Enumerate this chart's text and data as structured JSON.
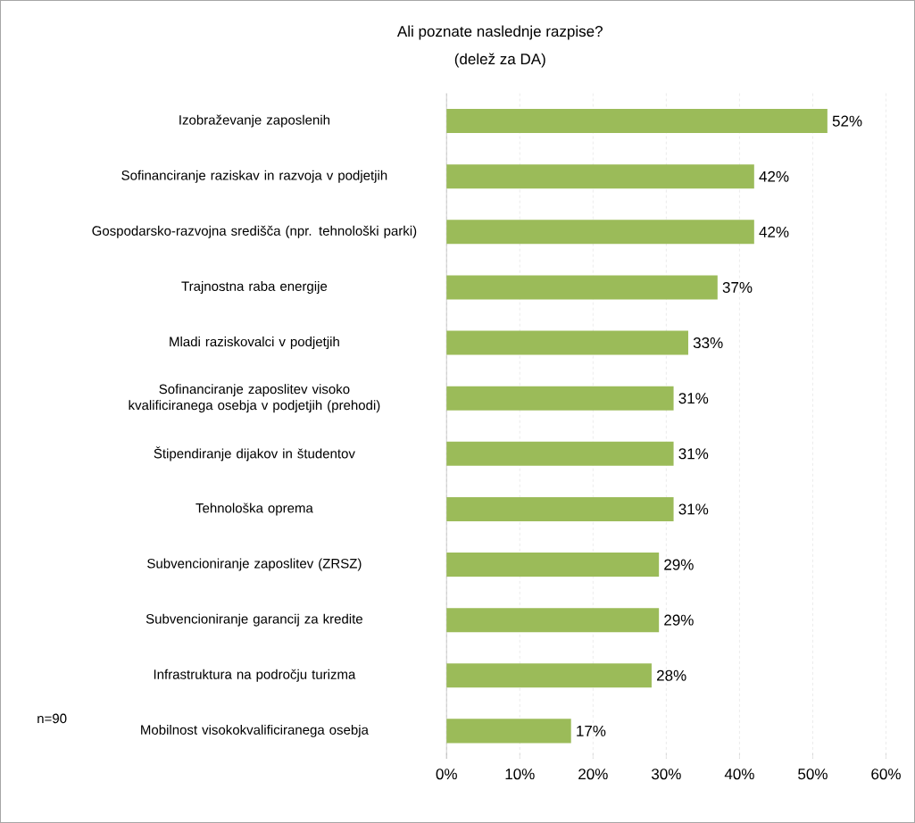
{
  "chart_data": {
    "type": "bar",
    "orientation": "horizontal",
    "title": "Ali poznate naslednje razpise?",
    "subtitle": "(delež za DA)",
    "categories": [
      "Izobraževanje zaposlenih",
      "Sofinanciranje raziskav in razvoja v podjetjih",
      "Gospodarsko-razvojna središča (npr. tehnološki parki)",
      "Trajnostna raba energije",
      "Mladi raziskovalci v podjetjih",
      "Sofinanciranje zaposlitev visoko kvalificiranega osebja v podjetjih (prehodi)",
      "Štipendiranje dijakov in študentov",
      "Tehnološka oprema",
      "Subvencioniranje zaposlitev (ZRSZ)",
      "Subvencioniranje garancij za kredite",
      "Infrastruktura na področju turizma",
      "Mobilnost visokokvalificiranega osebja"
    ],
    "values": [
      52,
      42,
      42,
      37,
      33,
      31,
      31,
      31,
      29,
      29,
      28,
      17
    ],
    "value_labels": [
      "52%",
      "42%",
      "42%",
      "37%",
      "33%",
      "31%",
      "31%",
      "31%",
      "29%",
      "29%",
      "28%",
      "17%"
    ],
    "color": "#9bbb59",
    "xlim": [
      0,
      60
    ],
    "xticks": [
      {
        "value": 0,
        "label": "0%"
      },
      {
        "value": 10,
        "label": "10%"
      },
      {
        "value": 20,
        "label": "20%"
      },
      {
        "value": 30,
        "label": "30%"
      },
      {
        "value": 40,
        "label": "40%"
      },
      {
        "value": 50,
        "label": "50%"
      },
      {
        "value": 60,
        "label": "60%"
      }
    ],
    "grid": "x",
    "annotations": [
      "n=90"
    ]
  }
}
